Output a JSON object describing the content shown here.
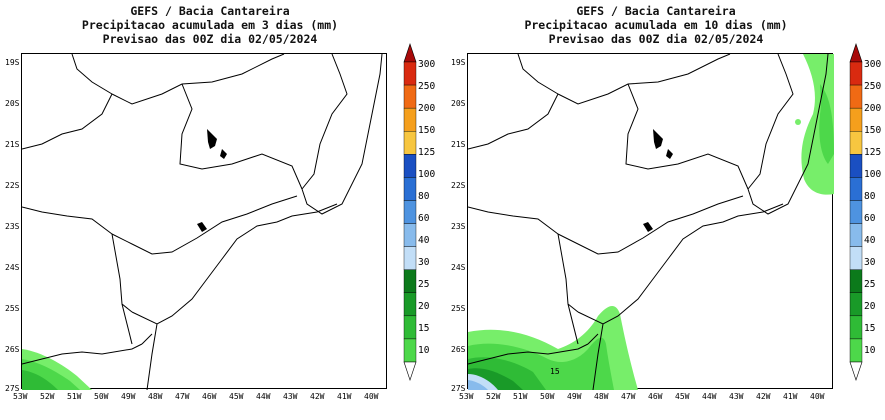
{
  "panels": [
    {
      "title_line1": "GEFS / Bacia Cantareira",
      "title_line2": "Precipitacao acumulada em 3 dias (mm)",
      "title_line3": "Previsao das 00Z dia 02/05/2024",
      "contour_label": ""
    },
    {
      "title_line1": "GEFS / Bacia Cantareira",
      "title_line2": "Precipitacao acumulada em 10 dias (mm)",
      "title_line3": "Previsao das 00Z dia 02/05/2024",
      "contour_label": "15"
    }
  ],
  "lat_labels": [
    "19S",
    "20S",
    "21S",
    "22S",
    "23S",
    "24S",
    "25S",
    "26S",
    "27S"
  ],
  "lon_labels": [
    "53W",
    "52W",
    "51W",
    "50W",
    "49W",
    "48W",
    "47W",
    "46W",
    "45W",
    "44W",
    "43W",
    "42W",
    "41W",
    "40W"
  ],
  "colorbar": {
    "levels": [
      "10",
      "15",
      "20",
      "25",
      "30",
      "40",
      "60",
      "80",
      "100",
      "125",
      "150",
      "200",
      "250",
      "300"
    ],
    "colors": [
      "#77ee6a",
      "#4dd84a",
      "#2fbb36",
      "#199a28",
      "#0c7a1b",
      "#c2def7",
      "#88bbec",
      "#4e93e0",
      "#2a6fd4",
      "#1a4fc2",
      "#f7c640",
      "#f59f1c",
      "#f06a14",
      "#d92a10",
      "#a80a0a"
    ]
  }
}
